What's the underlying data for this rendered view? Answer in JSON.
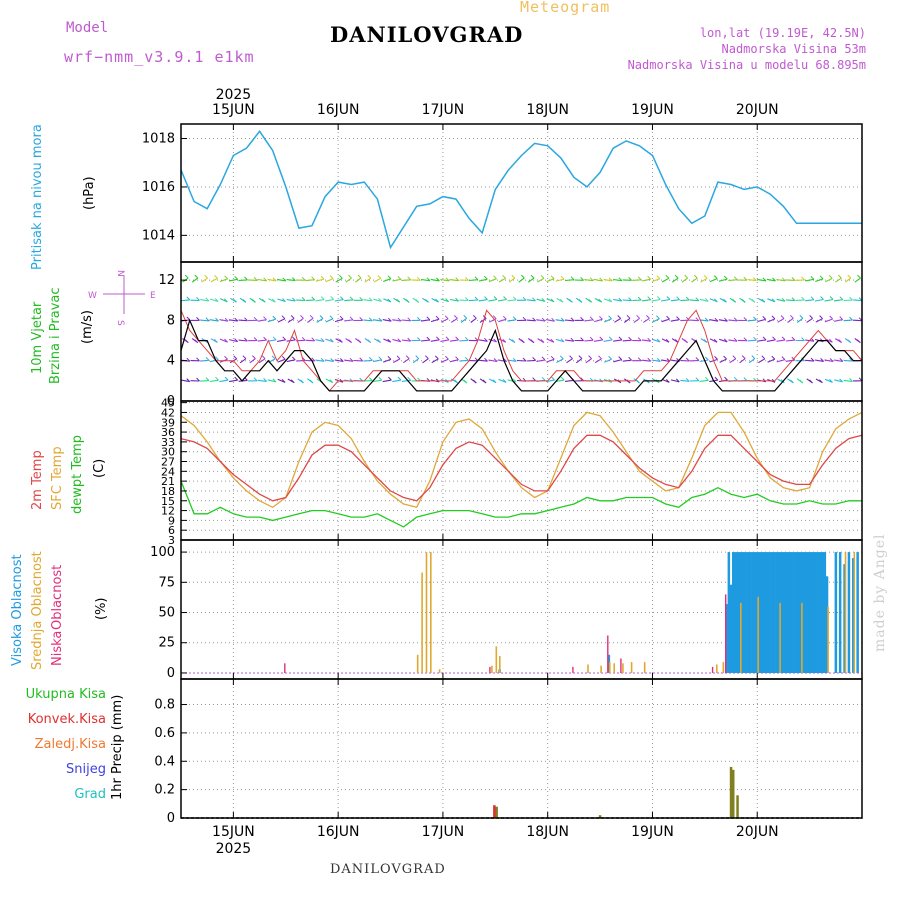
{
  "header": {
    "title": "DANILOVGRAD",
    "subtitle": "Meteogram",
    "model_label": "Model",
    "model_name": "wrf−nmm_v3.9.1 e1km",
    "lonlat": "lon,lat (19.19E, 42.5N)",
    "altitude": "Nadmorska Visina 53m",
    "model_altitude": "Nadmorska Visina u modelu 68.895m",
    "bottom_title": "DANILOVGRAD",
    "watermark": "made by Angel"
  },
  "time_axis": {
    "year": "2025",
    "days": [
      "15JUN",
      "16JUN",
      "17JUN",
      "18JUN",
      "19JUN",
      "20JUN"
    ],
    "range_hours": [
      -12,
      144
    ]
  },
  "panels": {
    "pressure": {
      "label": "Pritisak na nivou mora",
      "unit": "(hPa)"
    },
    "wind": {
      "label1": "10m Vjetar",
      "label2": "Brzina i Pravac",
      "unit": "(m/s)",
      "compass": {
        "w": "W",
        "e": "E",
        "n": "N",
        "s": "S"
      }
    },
    "temp": {
      "label1": "2m Temp",
      "label2": "SFC Temp",
      "label3": "dewpt Temp",
      "unit": "(C)"
    },
    "cloud": {
      "label1": "Visoka Oblacnost",
      "label2": "Srednja Oblacnost",
      "label3": "Niska",
      "label4": "Oblacnost",
      "unit": "(%)"
    },
    "precip": {
      "labels": [
        "Ukupna Kisa",
        "Konvek.Kisa",
        "Zaledj.Kisa",
        "Snijeg",
        "Grad"
      ],
      "unit": "1hr Precip (mm)"
    }
  },
  "colors": {
    "pressure": "#2aa7e0",
    "wind_speed": "#000000",
    "wind_gust": "#e04040",
    "t2m": "#e04848",
    "tsfc": "#e0a838",
    "dewpt": "#22cc22",
    "cloud_high": "#1e9be0",
    "cloud_mid": "#e0a830",
    "cloud_low": "#e0307a",
    "rain_total": "#22bb22",
    "rain_conv": "#e03030",
    "rain_freezing": "#f07830",
    "snow": "#4040e0",
    "hail": "#20c0c0",
    "precip_bar": "#808020"
  },
  "chart_data": [
    {
      "type": "line",
      "name_key": "pressure",
      "x_hours": [
        -12,
        -9,
        -6,
        -3,
        0,
        3,
        6,
        9,
        12,
        15,
        18,
        21,
        24,
        27,
        30,
        33,
        36,
        42,
        45,
        48,
        51,
        54,
        57,
        60,
        63,
        66,
        69,
        72,
        75,
        78,
        81,
        84,
        87,
        90,
        93,
        96,
        99,
        102,
        105,
        108,
        111,
        114,
        117,
        120,
        123,
        126,
        129,
        132,
        135,
        138,
        141,
        144
      ],
      "values": [
        1016.7,
        1015.4,
        1015.1,
        1016.1,
        1017.3,
        1017.6,
        1018.3,
        1017.5,
        1016.0,
        1014.3,
        1014.4,
        1015.6,
        1016.2,
        1016.1,
        1016.2,
        1015.5,
        1013.5,
        1015.2,
        1015.3,
        1015.6,
        1015.5,
        1014.7,
        1014.1,
        1015.9,
        1016.7,
        1017.3,
        1017.8,
        1017.7,
        1017.2,
        1016.4,
        1016.0,
        1016.6,
        1017.6,
        1017.9,
        1017.7,
        1017.3,
        1016.1,
        1015.1,
        1014.5,
        1014.8,
        1016.2,
        1016.1,
        1015.9,
        1016.0,
        1015.7,
        1015.2,
        1014.5,
        1014.5,
        1014.5,
        1014.5,
        1014.5,
        1014.5
      ],
      "ylim": [
        1012.9,
        1018.6
      ],
      "yticks": [
        1014,
        1016,
        1018
      ]
    },
    {
      "type": "line",
      "name_key": "wind",
      "x_hours": [
        -12,
        -10,
        -8,
        -6,
        -4,
        -2,
        0,
        2,
        4,
        6,
        8,
        10,
        12,
        14,
        16,
        18,
        20,
        22,
        24,
        26,
        28,
        30,
        32,
        34,
        36,
        38,
        40,
        42,
        44,
        46,
        48,
        50,
        52,
        54,
        56,
        58,
        60,
        62,
        64,
        66,
        68,
        70,
        72,
        74,
        76,
        78,
        80,
        82,
        84,
        86,
        88,
        90,
        92,
        94,
        96,
        98,
        100,
        102,
        104,
        106,
        108,
        110,
        112,
        114,
        116,
        118,
        120,
        122,
        124,
        126,
        128,
        130,
        132,
        134,
        136,
        138,
        140,
        142,
        144
      ],
      "speed": [
        5,
        8,
        6,
        6,
        4,
        3,
        3,
        2,
        3,
        3,
        4,
        3,
        4,
        5,
        5,
        4,
        2,
        1,
        1,
        1,
        1,
        1,
        2,
        3,
        3,
        3,
        2,
        1,
        1,
        1,
        1,
        1,
        2,
        3,
        4,
        5,
        7,
        4,
        2,
        1,
        1,
        1,
        1,
        2,
        3,
        2,
        1,
        1,
        1,
        1,
        1,
        1,
        1,
        2,
        2,
        2,
        3,
        4,
        5,
        6,
        4,
        2,
        1,
        1,
        1,
        1,
        1,
        1,
        1,
        2,
        3,
        4,
        5,
        6,
        6,
        5,
        5,
        4,
        4
      ],
      "gust": [
        9,
        7,
        6,
        5,
        4,
        4,
        4,
        3,
        3,
        4,
        6,
        4,
        5,
        7,
        4,
        3,
        2,
        1,
        2,
        2,
        2,
        2,
        3,
        3,
        3,
        3,
        3,
        2,
        2,
        2,
        2,
        2,
        3,
        4,
        6,
        9,
        8,
        5,
        3,
        2,
        2,
        2,
        2,
        3,
        3,
        3,
        2,
        2,
        2,
        2,
        2,
        2,
        2,
        3,
        3,
        3,
        4,
        6,
        8,
        9,
        7,
        4,
        2,
        2,
        2,
        2,
        2,
        2,
        2,
        3,
        4,
        5,
        6,
        7,
        6,
        5,
        5,
        5,
        4
      ],
      "ylim": [
        0,
        13.8
      ],
      "yticks": [
        0,
        4,
        8,
        12
      ]
    },
    {
      "type": "line",
      "name_key": "temp",
      "x_hours": [
        -12,
        -9,
        -6,
        -3,
        0,
        3,
        6,
        9,
        12,
        15,
        18,
        21,
        24,
        27,
        30,
        33,
        36,
        39,
        42,
        45,
        48,
        51,
        54,
        57,
        60,
        63,
        66,
        69,
        72,
        75,
        78,
        81,
        84,
        87,
        90,
        93,
        96,
        99,
        102,
        105,
        108,
        111,
        114,
        117,
        120,
        123,
        126,
        129,
        132,
        135,
        138,
        141,
        144
      ],
      "t2m": [
        34,
        33,
        31,
        27,
        23,
        20,
        17,
        15,
        16,
        22,
        29,
        32,
        32,
        30,
        26,
        22,
        18,
        16,
        15,
        19,
        26,
        31,
        33,
        32,
        28,
        24,
        20,
        18,
        18,
        24,
        31,
        35,
        35,
        33,
        29,
        25,
        22,
        20,
        19,
        24,
        31,
        35,
        35,
        31,
        27,
        23,
        21,
        20,
        20,
        26,
        31,
        34,
        35
      ],
      "tsfc": [
        41,
        38,
        33,
        27,
        22,
        18,
        15,
        13,
        16,
        27,
        36,
        39,
        38,
        34,
        27,
        21,
        17,
        14,
        13,
        21,
        33,
        39,
        40,
        37,
        30,
        24,
        19,
        16,
        18,
        28,
        38,
        42,
        41,
        36,
        30,
        24,
        21,
        18,
        19,
        28,
        38,
        42,
        42,
        36,
        28,
        22,
        19,
        18,
        19,
        30,
        37,
        40,
        42
      ],
      "dewpt": [
        21,
        11,
        11,
        13,
        11,
        10,
        10,
        9,
        10,
        11,
        12,
        12,
        11,
        10,
        10,
        11,
        9,
        7,
        10,
        11,
        12,
        12,
        12,
        11,
        10,
        10,
        11,
        11,
        12,
        13,
        14,
        16,
        15,
        15,
        16,
        16,
        16,
        14,
        13,
        16,
        17,
        19,
        17,
        16,
        17,
        15,
        14,
        14,
        15,
        14,
        14,
        15,
        15
      ],
      "ylim": [
        3,
        45.5
      ],
      "yticks": [
        3,
        6,
        9,
        12,
        15,
        18,
        21,
        24,
        27,
        30,
        33,
        36,
        39,
        42,
        45
      ]
    },
    {
      "type": "bar",
      "name_key": "cloud",
      "ylim": [
        -5,
        110
      ],
      "yticks": [
        0,
        25,
        50,
        75,
        100
      ],
      "low": {
        "x_hours": [
          -12,
          12,
          51,
          59,
          78,
          86,
          89,
          110,
          113
        ],
        "values": [
          0,
          8,
          0,
          5,
          5,
          31,
          12,
          5,
          65
        ]
      },
      "mid": {
        "x_hours": [
          42,
          43,
          44,
          45,
          47,
          59,
          60,
          60.8,
          81,
          84,
          86,
          87,
          89,
          91,
          94,
          110.5,
          112,
          116,
          120,
          125,
          130,
          136,
          140,
          142
        ],
        "values": [
          15,
          83,
          100,
          100,
          3,
          6,
          22,
          14,
          7,
          6,
          9,
          8,
          8,
          9,
          9,
          7,
          9,
          58,
          63,
          58,
          58,
          55,
          100,
          100
        ]
      },
      "high": {
        "x_hours": [
          61,
          86,
          113,
          113.5,
          114,
          114.5,
          115,
          115.5,
          116,
          116.5,
          117,
          117.5,
          118,
          118.5,
          119,
          119.5,
          120,
          120.5,
          121,
          121.5,
          122,
          122.5,
          123,
          123.5,
          124,
          124.5,
          125,
          125.5,
          126,
          126.5,
          127,
          127.5,
          128,
          128.5,
          129,
          129.5,
          130,
          130.5,
          131,
          131.5,
          132,
          132.5,
          133,
          133.5,
          134,
          134.5,
          135,
          135.5,
          136,
          138,
          139,
          140,
          141,
          142,
          143
        ],
        "values": [
          3,
          15,
          57,
          100,
          73,
          100,
          100,
          100,
          100,
          100,
          100,
          100,
          100,
          100,
          100,
          100,
          100,
          100,
          100,
          100,
          100,
          100,
          100,
          100,
          100,
          100,
          100,
          100,
          100,
          100,
          100,
          100,
          100,
          100,
          100,
          100,
          100,
          100,
          100,
          100,
          100,
          100,
          100,
          100,
          100,
          100,
          100,
          100,
          80,
          100,
          100,
          90,
          100,
          95,
          100
        ]
      }
    },
    {
      "type": "bar",
      "name_key": "precip",
      "ylim": [
        0,
        0.98
      ],
      "yticks": [
        0,
        0.2,
        0.4,
        0.6,
        0.8
      ],
      "conv": {
        "x_hours": [
          60
        ],
        "values": [
          0.09
        ]
      },
      "total": {
        "x_hours": [
          60.3,
          84,
          114,
          114.5,
          115.5
        ],
        "values": [
          0.08,
          0.02,
          0.36,
          0.34,
          0.16
        ]
      }
    }
  ]
}
